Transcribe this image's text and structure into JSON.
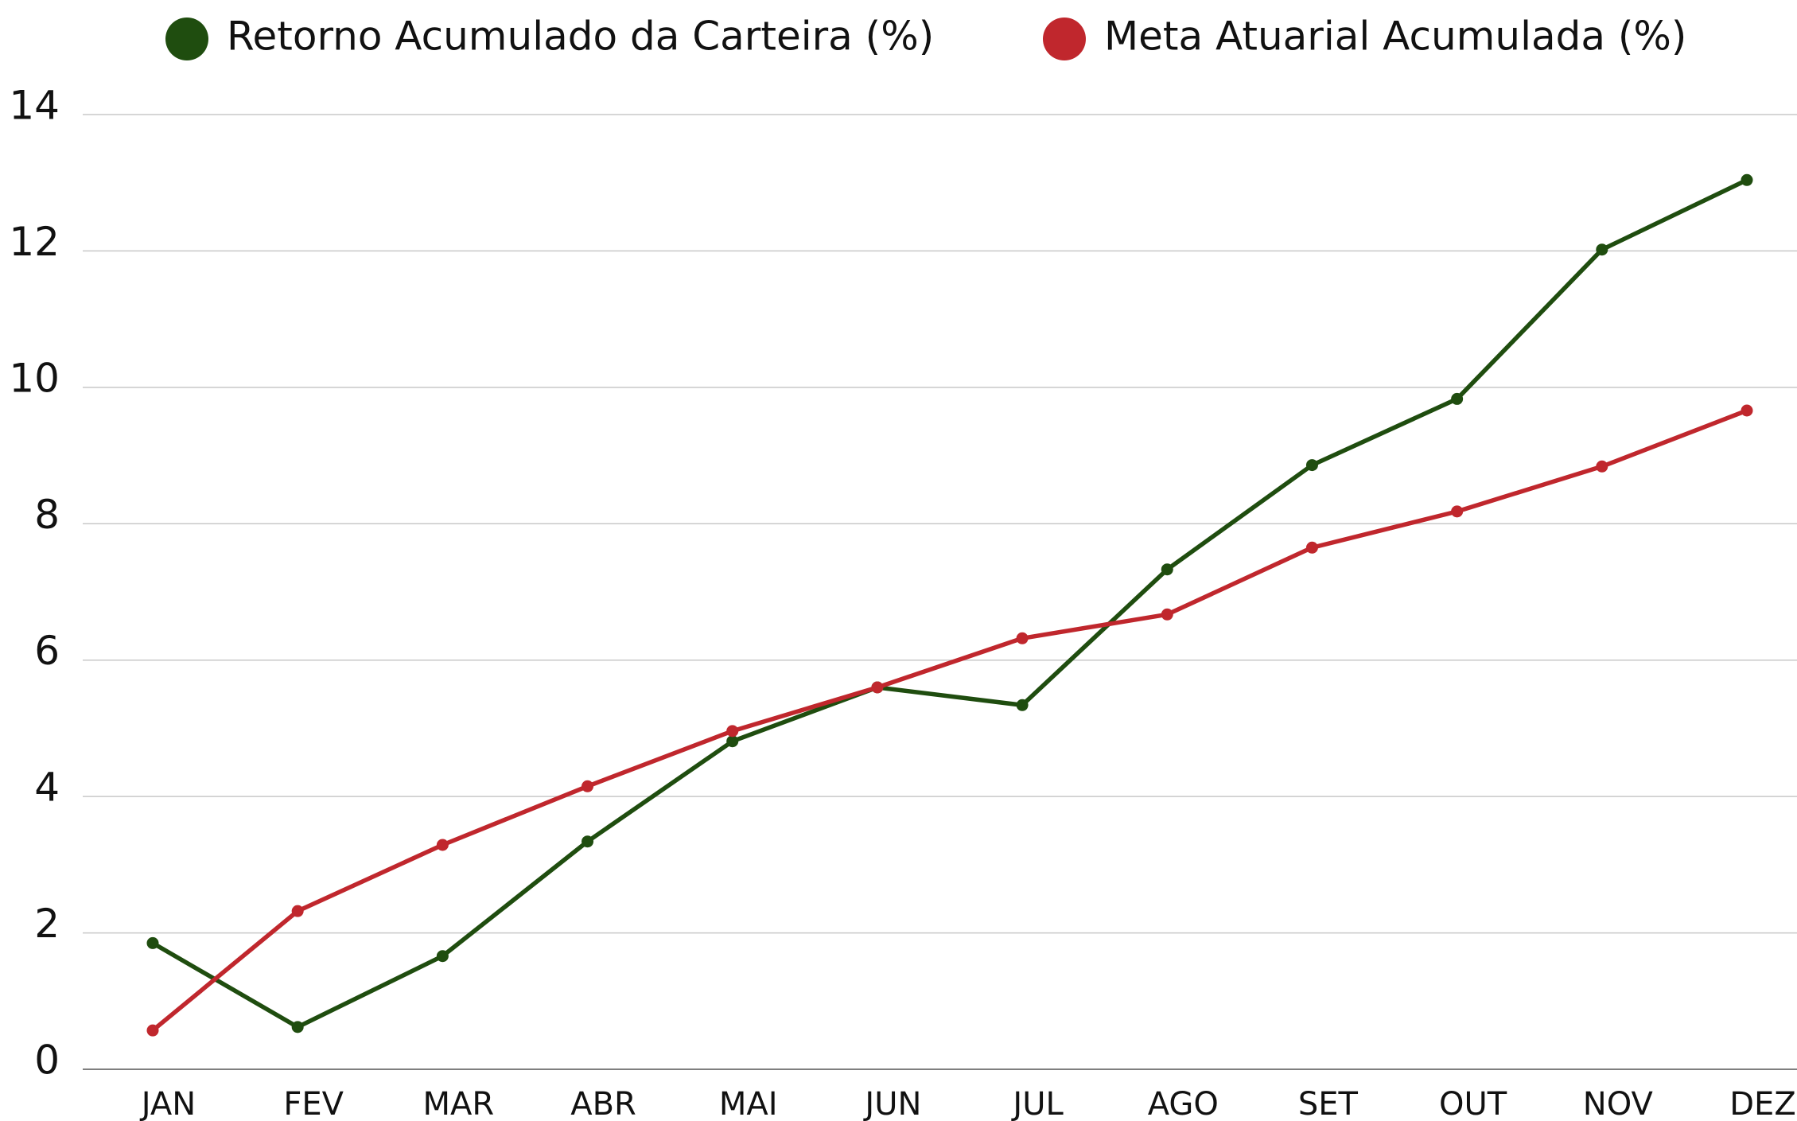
{
  "chart_data": {
    "type": "line",
    "categories": [
      "JAN",
      "FEV",
      "MAR",
      "ABR",
      "MAI",
      "JUN",
      "JUL",
      "AGO",
      "SET",
      "OUT",
      "NOV",
      "DEZ"
    ],
    "series": [
      {
        "name": "Retorno Acumulado da Carteira (%)",
        "color": "#1f4d0f",
        "values": [
          1.85,
          0.62,
          1.66,
          3.34,
          4.81,
          5.6,
          5.34,
          7.33,
          8.86,
          9.83,
          12.02,
          13.04
        ]
      },
      {
        "name": "Meta Atuarial Acumulada (%)",
        "color": "#c0272d",
        "values": [
          0.57,
          2.32,
          3.29,
          4.15,
          4.96,
          5.6,
          6.32,
          6.67,
          7.65,
          8.18,
          8.84,
          9.66
        ]
      }
    ],
    "ylim": [
      0,
      14
    ],
    "yticks": [
      0,
      2,
      4,
      6,
      8,
      10,
      12,
      14
    ],
    "grid": true,
    "legend": "top"
  }
}
